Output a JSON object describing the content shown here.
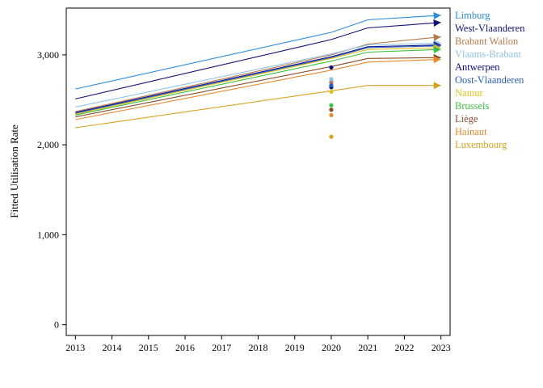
{
  "chart_data": {
    "type": "line",
    "title": "",
    "xlabel": "",
    "ylabel": "Fitted Utilisation Rate",
    "x_ticks": [
      "2013",
      "2014",
      "2015",
      "2016",
      "2017",
      "2018",
      "2019",
      "2020",
      "2021",
      "2022",
      "2023"
    ],
    "y_ticks": [
      {
        "value": 0,
        "label": "0"
      },
      {
        "value": 1000,
        "label": "1,000"
      },
      {
        "value": 2000,
        "label": "2,000"
      },
      {
        "value": 3000,
        "label": "3,000"
      }
    ],
    "xlim": [
      2012.75,
      2023.25
    ],
    "ylim": [
      -120,
      3520
    ],
    "legend_position": "right",
    "series": [
      {
        "name": "Limburg",
        "color": "#2a8be0",
        "points": [
          [
            2013,
            2620
          ],
          [
            2020,
            3250
          ],
          [
            2021,
            3390
          ],
          [
            2023,
            3440
          ]
        ],
        "point_2020": 2700
      },
      {
        "name": "West-Vlaanderen",
        "color": "#111177",
        "points": [
          [
            2013,
            2510
          ],
          [
            2020,
            3170
          ],
          [
            2021,
            3300
          ],
          [
            2023,
            3360
          ]
        ],
        "point_2020": 2640
      },
      {
        "name": "Brabant Wallon",
        "color": "#b87a4a",
        "points": [
          [
            2013,
            2370
          ],
          [
            2020,
            3000
          ],
          [
            2021,
            3120
          ],
          [
            2023,
            3200
          ]
        ],
        "point_2020": 2690
      },
      {
        "name": "Vlaams-Brabant",
        "color": "#8fc3ea",
        "points": [
          [
            2013,
            2420
          ],
          [
            2020,
            3010
          ],
          [
            2021,
            3110
          ],
          [
            2023,
            3130
          ]
        ],
        "point_2020": 2730
      },
      {
        "name": "Antwerpen",
        "color": "#0d0d85",
        "points": [
          [
            2013,
            2360
          ],
          [
            2020,
            2980
          ],
          [
            2021,
            3090
          ],
          [
            2023,
            3110
          ]
        ],
        "point_2020": 2860
      },
      {
        "name": "Oost-Vlaanderen",
        "color": "#2a5cbf",
        "points": [
          [
            2013,
            2350
          ],
          [
            2020,
            2970
          ],
          [
            2021,
            3080
          ],
          [
            2023,
            3100
          ]
        ],
        "point_2020": 2660
      },
      {
        "name": "Namur",
        "color": "#e2c21c",
        "points": [
          [
            2013,
            2340
          ],
          [
            2020,
            2960
          ],
          [
            2021,
            3060
          ],
          [
            2023,
            3080
          ]
        ],
        "point_2020": 2590
      },
      {
        "name": "Brussels",
        "color": "#3fbf3f",
        "points": [
          [
            2013,
            2330
          ],
          [
            2020,
            2930
          ],
          [
            2021,
            3030
          ],
          [
            2023,
            3060
          ]
        ],
        "point_2020": 2440
      },
      {
        "name": "Liège",
        "color": "#8a4a28",
        "points": [
          [
            2013,
            2310
          ],
          [
            2020,
            2870
          ],
          [
            2021,
            2960
          ],
          [
            2023,
            2970
          ]
        ],
        "point_2020": 2390
      },
      {
        "name": "Hainaut",
        "color": "#e88a2c",
        "points": [
          [
            2013,
            2280
          ],
          [
            2020,
            2830
          ],
          [
            2021,
            2920
          ],
          [
            2023,
            2950
          ]
        ],
        "point_2020": 2330
      },
      {
        "name": "Luxembourg",
        "color": "#d8a020",
        "points": [
          [
            2013,
            2190
          ],
          [
            2020,
            2600
          ],
          [
            2021,
            2660
          ],
          [
            2023,
            2660
          ]
        ],
        "point_2020": 2090
      }
    ]
  }
}
